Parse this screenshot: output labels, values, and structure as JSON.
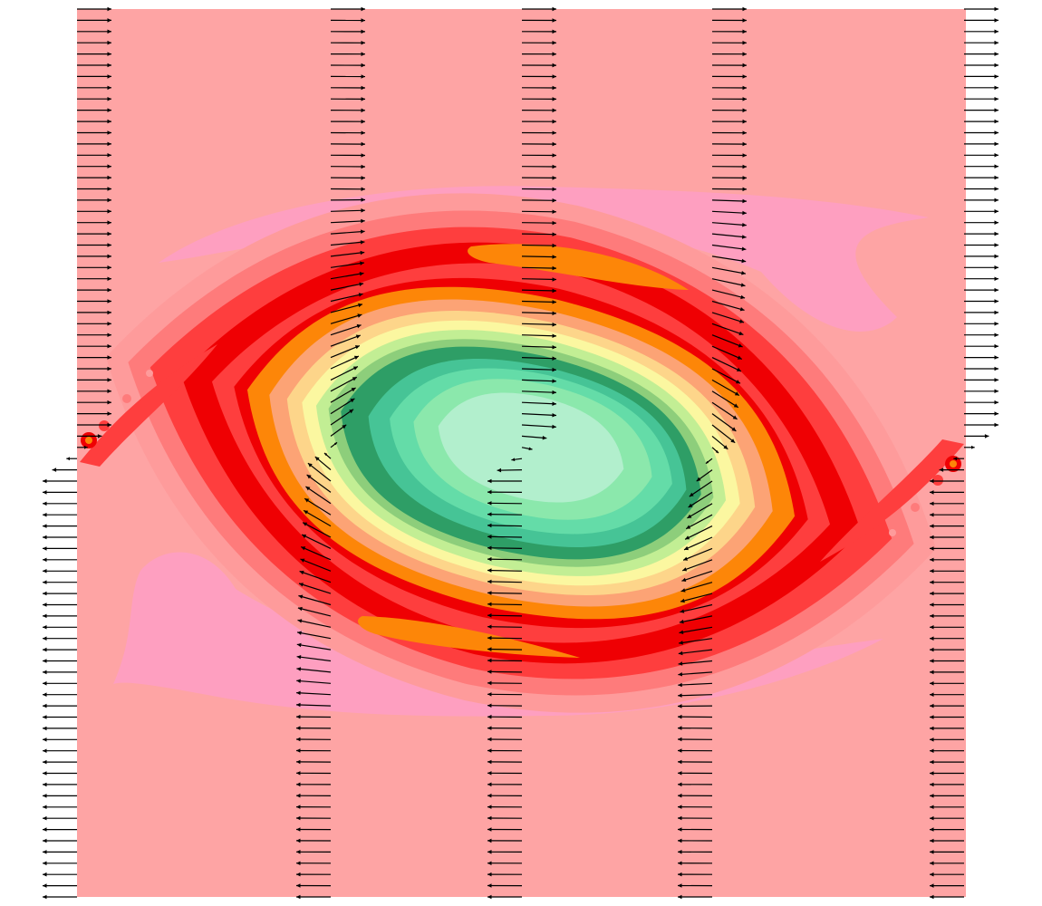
{
  "figure": {
    "kind": "contour plot with overlaid vector arrows (vortex / cat's-eye flow)",
    "background_color": "#ffffff",
    "contour_palette": [
      "#b2efcd",
      "#8be8ac",
      "#64dca8",
      "#46c496",
      "#2e9e66",
      "#8dce7b",
      "#c2ee94",
      "#fbf7a0",
      "#fdd58a",
      "#fca375",
      "#fd8608",
      "#ef0003",
      "#fe3e3e",
      "#fe7b7b",
      "#fe9b9b",
      "#fea4a4",
      "#fe9fc0"
    ],
    "outer_field_color": "#fea4a4",
    "pink_band_color": "#fe9fc0",
    "arrow_color": "#000000",
    "arrow_columns": 5,
    "arrows_per_column": 80,
    "upper_half_direction": "right",
    "lower_half_direction": "left"
  }
}
